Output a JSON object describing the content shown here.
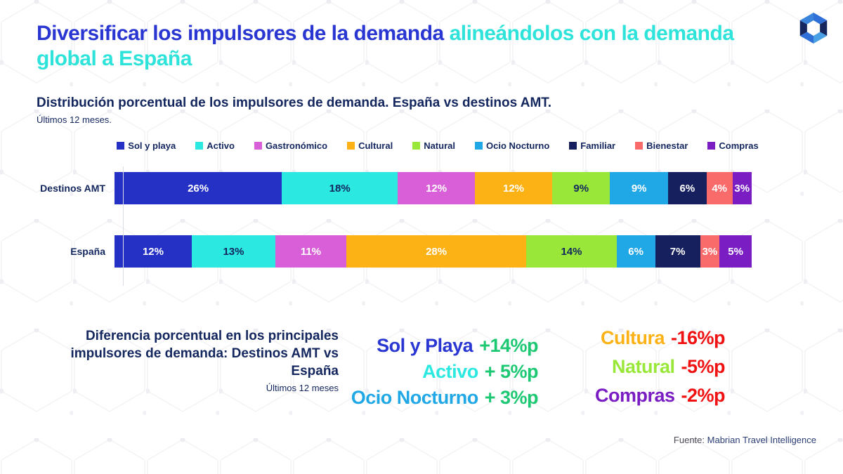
{
  "header": {
    "title_part1": "Diversificar los impulsores de la demanda",
    "title_part2": "alineándolos con la demanda global a España",
    "subtitle": "Distribución porcentual de los impulsores de demanda. España vs destinos AMT.",
    "period": "Últimos 12 meses."
  },
  "chart_data": {
    "type": "bar",
    "stacked": true,
    "orientation": "horizontal",
    "unit": "%",
    "legend_position": "top",
    "categories": [
      "Sol y playa",
      "Activo",
      "Gastronómico",
      "Cultural",
      "Natural",
      "Ocio Nocturno",
      "Familiar",
      "Bienestar",
      "Compras"
    ],
    "colors": [
      "#2531c4",
      "#2be8e0",
      "#d95fd8",
      "#fcb215",
      "#99e839",
      "#1fa7e6",
      "#16205e",
      "#f96b6b",
      "#7a1ec4"
    ],
    "dark_label_indices": [
      1,
      4
    ],
    "series": [
      {
        "name": "Destinos AMT",
        "values": [
          26,
          18,
          12,
          12,
          9,
          9,
          6,
          4,
          3
        ]
      },
      {
        "name": "España",
        "values": [
          12,
          13,
          11,
          28,
          14,
          6,
          7,
          3,
          5
        ]
      }
    ]
  },
  "diff": {
    "heading": "Diferencia porcentual en los principales impulsores de demanda: Destinos AMT vs España",
    "period": "Últimos 12 meses",
    "positive_value_color": "#1dc873",
    "negative_value_color": "#f01212",
    "positive": [
      {
        "label": "Sol y Playa",
        "value": "+14%p",
        "color": "#2936d1"
      },
      {
        "label": "Activo",
        "value": "+ 5%p",
        "color": "#2be8e0"
      },
      {
        "label": "Ocio Nocturno",
        "value": "+ 3%p",
        "color": "#1fa7e6"
      }
    ],
    "negative": [
      {
        "label": "Cultura",
        "value": "-16%p",
        "color": "#fcb215"
      },
      {
        "label": "Natural",
        "value": "-5%p",
        "color": "#99e839"
      },
      {
        "label": "Compras",
        "value": "-2%p",
        "color": "#7a1ec4"
      }
    ]
  },
  "footer": {
    "source_prefix": "Fuente:",
    "source_name": "Mabrian Travel Intelligence"
  },
  "colors": {
    "title_blue": "#2936d1",
    "title_cyan": "#2ee3da",
    "navy_text": "#13265e"
  }
}
